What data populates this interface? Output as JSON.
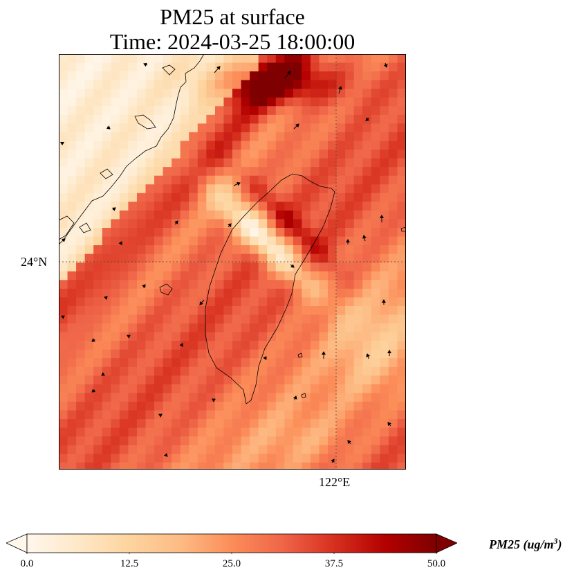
{
  "title": {
    "line1": "PM25 at surface",
    "line2": "Time: 2024-03-25 18:00:00"
  },
  "axes": {
    "lat_tick": "24°N",
    "lon_tick": "122°E",
    "lat_tick_value": 24,
    "lon_tick_value": 122,
    "gridline_style": "dotted"
  },
  "colorbar": {
    "label_prefix": "PM25 (ug/m",
    "label_exponent": "3",
    "label_suffix": ")",
    "ticks": [
      "0.0",
      "12.5",
      "25.0",
      "37.5",
      "50.0"
    ],
    "tick_values": [
      0,
      12.5,
      25,
      37.5,
      50
    ],
    "extend": "both",
    "colormap": [
      "#fff7ec",
      "#fee8c8",
      "#fdd49e",
      "#fdbb84",
      "#fc8d59",
      "#ef6548",
      "#d7301f",
      "#b30000",
      "#7f0000"
    ]
  },
  "chart_data": {
    "type": "heatmap",
    "variable": "PM25",
    "units": "ug/m3",
    "vmin": 0,
    "vmax": 50,
    "overlays": [
      "coastlines",
      "wind-vectors"
    ]
  }
}
